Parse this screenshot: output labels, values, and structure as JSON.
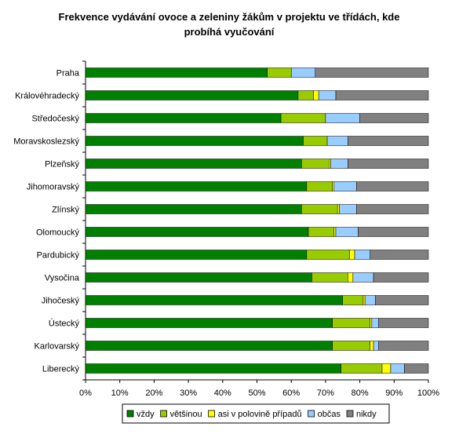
{
  "chart_data": {
    "type": "bar",
    "orientation": "horizontal",
    "stacked": "percent",
    "title_lines": [
      "Frekvence vydávání ovoce a zeleniny žákům v projektu ve třídách, kde",
      "probíhá vyučování"
    ],
    "categories": [
      "Praha",
      "Královéhradecký",
      "Středočeský",
      "Moravskoslezský",
      "Plzeňský",
      "Jihomoravský",
      "Zlínský",
      "Olomoucký",
      "Pardubický",
      "Vysočina",
      "Jihočeský",
      "Ústecký",
      "Karlovarský",
      "Liberecký"
    ],
    "series": [
      {
        "name": "vždy",
        "color": "#008000",
        "values": [
          53,
          62,
          57,
          63.5,
          63,
          64.5,
          63,
          65,
          64.5,
          66,
          75,
          72,
          72,
          74.5
        ]
      },
      {
        "name": "většinou",
        "color": "#99cc00",
        "values": [
          7,
          4.5,
          13,
          7,
          8,
          7.5,
          10.5,
          7.5,
          12.5,
          10.5,
          6,
          11,
          11,
          12
        ]
      },
      {
        "name": "asi v polovině případů",
        "color": "#ffff00",
        "values": [
          0,
          1.5,
          0,
          0,
          0.5,
          0.5,
          0.5,
          0.5,
          1.5,
          1.5,
          0.5,
          0.5,
          1,
          2.5
        ]
      },
      {
        "name": "občas",
        "color": "#99ccff",
        "values": [
          7,
          5,
          10,
          6,
          5,
          6.5,
          5,
          6.5,
          4.5,
          6,
          3,
          2,
          1.5,
          4
        ]
      },
      {
        "name": "nikdy",
        "color": "#808080",
        "values": [
          33,
          27,
          20,
          23.5,
          23.5,
          21,
          21,
          20.5,
          17,
          16,
          15.5,
          14.5,
          14.5,
          7
        ]
      }
    ],
    "xlim": [
      0,
      100
    ],
    "x_tick_labels": [
      "0%",
      "10%",
      "20%",
      "30%",
      "40%",
      "50%",
      "60%",
      "70%",
      "80%",
      "90%",
      "100%"
    ],
    "gridlines": false,
    "legend_position": "bottom"
  }
}
